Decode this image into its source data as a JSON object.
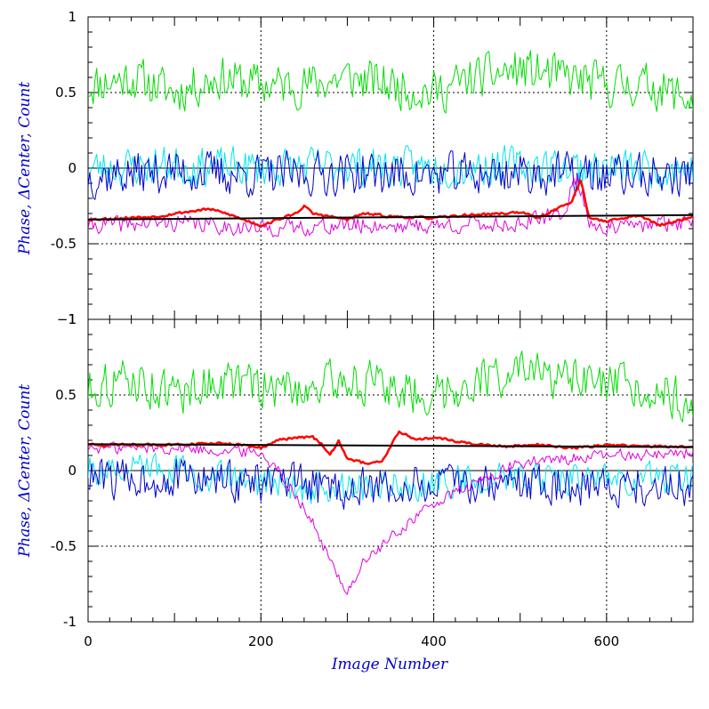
{
  "colors": {
    "green": "#00dd00",
    "cyan": "#00e5ee",
    "blue": "#0000cc",
    "magenta": "#e000e0",
    "red": "#ff0000",
    "fit": "#000000",
    "axis_title": "#0000cc"
  },
  "chart_data": [
    {
      "type": "line",
      "panel": "top",
      "xlabel": "",
      "ylabel": "Phase, ΔCenter, Count",
      "xlim": [
        0,
        700
      ],
      "ylim": [
        -1,
        1
      ],
      "xticks": [
        0,
        200,
        400,
        600
      ],
      "yticks": [
        -1,
        -0.5,
        0,
        0.5,
        1
      ],
      "ytick_labels": [
        "−1",
        "-0.5",
        "0",
        "0.5",
        "1"
      ],
      "grid": {
        "dashed_x": [
          200,
          400,
          600
        ],
        "dashed_y": [
          -0.5,
          0.5
        ],
        "solid_y": [
          0
        ]
      },
      "series": [
        {
          "color": "green",
          "width": 1,
          "x": [
            0,
            50,
            100,
            150,
            200,
            250,
            300,
            350,
            400,
            450,
            500,
            550,
            600,
            650,
            700
          ],
          "y": [
            0.55,
            0.6,
            0.5,
            0.6,
            0.55,
            0.55,
            0.6,
            0.55,
            0.5,
            0.6,
            0.65,
            0.6,
            0.55,
            0.55,
            0.45
          ],
          "amp": 0.18,
          "seed": 11
        },
        {
          "color": "cyan",
          "width": 1,
          "x": [
            0,
            100,
            200,
            300,
            400,
            500,
            600,
            700
          ],
          "y": [
            0.0,
            0.02,
            0.0,
            0.02,
            0.0,
            0.02,
            0.0,
            0.0
          ],
          "amp": 0.16,
          "seed": 23
        },
        {
          "color": "blue",
          "width": 1,
          "x": [
            0,
            100,
            200,
            300,
            400,
            500,
            600,
            700
          ],
          "y": [
            -0.05,
            -0.02,
            -0.05,
            -0.03,
            -0.05,
            -0.03,
            -0.05,
            -0.05
          ],
          "amp": 0.18,
          "seed": 37
        },
        {
          "color": "magenta",
          "width": 1,
          "x": [
            0,
            100,
            200,
            300,
            400,
            500,
            550,
            565,
            580,
            600,
            700
          ],
          "y": [
            -0.38,
            -0.36,
            -0.4,
            -0.38,
            -0.38,
            -0.37,
            -0.3,
            -0.05,
            -0.35,
            -0.4,
            -0.35
          ],
          "amp": 0.07,
          "seed": 41
        },
        {
          "color": "red",
          "width": 2.5,
          "x": [
            0,
            40,
            80,
            100,
            140,
            160,
            200,
            240,
            250,
            260,
            300,
            320,
            350,
            400,
            440,
            480,
            500,
            520,
            560,
            570,
            580,
            600,
            640,
            660,
            700
          ],
          "y": [
            -0.34,
            -0.33,
            -0.32,
            -0.3,
            -0.27,
            -0.3,
            -0.38,
            -0.3,
            -0.25,
            -0.3,
            -0.34,
            -0.3,
            -0.32,
            -0.33,
            -0.31,
            -0.3,
            -0.29,
            -0.33,
            -0.22,
            -0.08,
            -0.33,
            -0.35,
            -0.31,
            -0.38,
            -0.32
          ],
          "amp": 0.01,
          "seed": 53
        },
        {
          "color": "fit",
          "width": 2,
          "x": [
            0,
            700
          ],
          "y": [
            -0.34,
            -0.31
          ],
          "amp": 0,
          "seed": 1
        }
      ]
    },
    {
      "type": "line",
      "panel": "bottom",
      "xlabel": "Image Number",
      "ylabel": "Phase, ΔCenter, Count",
      "xlim": [
        0,
        700
      ],
      "ylim": [
        -1,
        1
      ],
      "xticks": [
        0,
        200,
        400,
        600
      ],
      "xtick_labels": [
        "0",
        "200",
        "400",
        "600"
      ],
      "yticks": [
        -1,
        -0.5,
        0,
        0.5,
        1
      ],
      "ytick_labels": [
        "-1",
        "-0.5",
        "0",
        "0.5",
        "1"
      ],
      "grid": {
        "dashed_x": [
          200,
          400,
          600
        ],
        "dashed_y": [
          -0.5,
          0.5
        ],
        "solid_y": [
          0
        ]
      },
      "series": [
        {
          "color": "green",
          "width": 1,
          "x": [
            0,
            50,
            100,
            150,
            200,
            250,
            300,
            350,
            400,
            450,
            500,
            550,
            600,
            650,
            700
          ],
          "y": [
            0.55,
            0.6,
            0.5,
            0.6,
            0.55,
            0.55,
            0.6,
            0.55,
            0.5,
            0.6,
            0.65,
            0.6,
            0.55,
            0.55,
            0.45
          ],
          "amp": 0.18,
          "seed": 11
        },
        {
          "color": "cyan",
          "width": 1,
          "x": [
            0,
            100,
            200,
            250,
            300,
            350,
            400,
            500,
            600,
            700
          ],
          "y": [
            0.0,
            0.0,
            -0.08,
            -0.12,
            -0.12,
            -0.1,
            -0.08,
            -0.05,
            -0.05,
            -0.05
          ],
          "amp": 0.13,
          "seed": 23
        },
        {
          "color": "blue",
          "width": 1,
          "x": [
            0,
            100,
            200,
            300,
            400,
            500,
            600,
            700
          ],
          "y": [
            -0.05,
            -0.05,
            -0.08,
            -0.12,
            -0.1,
            -0.08,
            -0.1,
            -0.1
          ],
          "amp": 0.17,
          "seed": 37
        },
        {
          "color": "magenta",
          "width": 1,
          "x": [
            0,
            100,
            200,
            220,
            240,
            260,
            280,
            300,
            320,
            350,
            380,
            400,
            450,
            500,
            600,
            700
          ],
          "y": [
            0.15,
            0.15,
            0.12,
            0.0,
            -0.15,
            -0.35,
            -0.6,
            -0.8,
            -0.6,
            -0.45,
            -0.3,
            -0.22,
            -0.08,
            0.05,
            0.1,
            0.12
          ],
          "amp": 0.05,
          "seed": 41
        },
        {
          "color": "red",
          "width": 2.5,
          "x": [
            0,
            40,
            100,
            150,
            180,
            200,
            220,
            240,
            260,
            270,
            280,
            290,
            300,
            320,
            340,
            360,
            380,
            400,
            440,
            480,
            520,
            560,
            600,
            640,
            700
          ],
          "y": [
            0.17,
            0.17,
            0.17,
            0.18,
            0.17,
            0.15,
            0.2,
            0.22,
            0.22,
            0.18,
            0.1,
            0.2,
            0.08,
            0.05,
            0.06,
            0.26,
            0.2,
            0.22,
            0.18,
            0.16,
            0.17,
            0.15,
            0.17,
            0.16,
            0.16
          ],
          "amp": 0.01,
          "seed": 53
        },
        {
          "color": "fit",
          "width": 2,
          "x": [
            0,
            700
          ],
          "y": [
            0.175,
            0.155
          ],
          "amp": 0,
          "seed": 1
        }
      ]
    }
  ]
}
